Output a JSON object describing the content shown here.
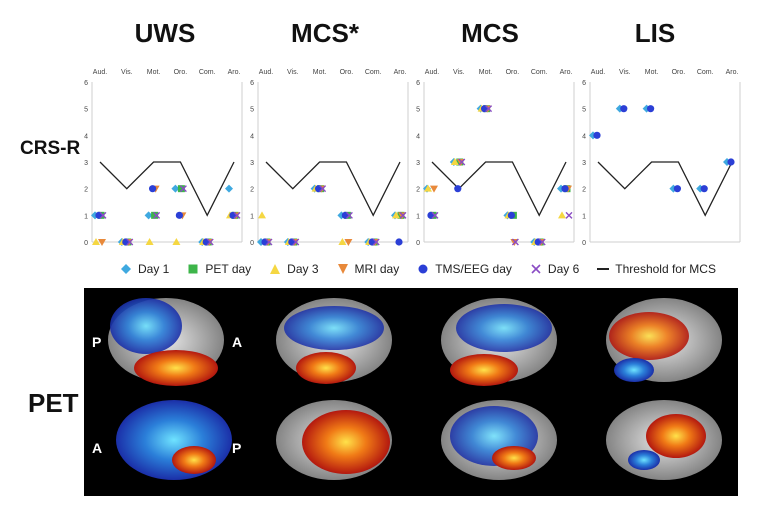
{
  "chart_data": {
    "type": "scatter",
    "ylim": [
      0,
      6
    ],
    "yticks": [
      "0",
      "1",
      "2",
      "3",
      "4",
      "5",
      "6"
    ],
    "categories": [
      "Aud.",
      "Vis.",
      "Mot.",
      "Oro.",
      "Com.",
      "Aro."
    ],
    "ylabel": "CRS-R",
    "legend": [
      {
        "name": "Day 1",
        "marker": "diamond",
        "color": "#3fa9e0"
      },
      {
        "name": "PET day",
        "marker": "square",
        "color": "#3db54a"
      },
      {
        "name": "Day 3",
        "marker": "triangle-up",
        "color": "#f5d742"
      },
      {
        "name": "MRI day",
        "marker": "triangle-down",
        "color": "#e8893a"
      },
      {
        "name": "TMS/EEG day",
        "marker": "circle",
        "color": "#2b3fd6"
      },
      {
        "name": "Day 6",
        "marker": "x",
        "color": "#8a4cc4"
      },
      {
        "name": "Threshold for MCS",
        "marker": "line",
        "color": "#222222"
      }
    ],
    "panels": [
      {
        "title": "UWS",
        "threshold": [
          3,
          2,
          3,
          3,
          1,
          3
        ],
        "series": {
          "Day 1": [
            1,
            0,
            1,
            2,
            0,
            2
          ],
          "PET day": [
            1,
            0,
            1,
            2,
            0,
            1
          ],
          "Day 3": [
            0,
            0,
            0,
            0,
            0,
            1
          ],
          "MRI day": [
            0,
            0,
            2,
            1,
            0,
            1
          ],
          "TMS/EEG day": [
            1,
            0,
            2,
            1,
            0,
            1
          ],
          "Day 6": [
            1,
            0,
            1,
            2,
            0,
            1
          ]
        }
      },
      {
        "title": "MCS*",
        "threshold": [
          3,
          2,
          3,
          3,
          1,
          3
        ],
        "series": {
          "Day 1": [
            0,
            0,
            2,
            1,
            0,
            1
          ],
          "PET day": [
            0,
            0,
            2,
            1,
            0,
            1
          ],
          "Day 3": [
            1,
            0,
            2,
            0,
            0,
            1
          ],
          "MRI day": [
            0,
            0,
            2,
            0,
            0,
            1
          ],
          "TMS/EEG day": [
            0,
            0,
            2,
            1,
            0,
            0
          ],
          "Day 6": [
            0,
            0,
            2,
            1,
            0,
            1
          ]
        }
      },
      {
        "title": "MCS",
        "threshold": [
          3,
          2,
          3,
          3,
          1,
          3
        ],
        "series": {
          "Day 1": [
            2,
            3,
            5,
            1,
            0,
            2
          ],
          "PET day": [
            1,
            3,
            5,
            1,
            0,
            2
          ],
          "Day 3": [
            2,
            3,
            5,
            1,
            0,
            1
          ],
          "MRI day": [
            2,
            3,
            5,
            0,
            0,
            2
          ],
          "TMS/EEG day": [
            1,
            2,
            5,
            1,
            0,
            2
          ],
          "Day 6": [
            1,
            3,
            5,
            0,
            0,
            1
          ]
        }
      },
      {
        "title": "LIS",
        "threshold": [
          3,
          2,
          3,
          3,
          1,
          3
        ],
        "series": {
          "Day 1": [
            4,
            5,
            5,
            2,
            2,
            3
          ],
          "TMS/EEG day": [
            4,
            5,
            5,
            2,
            2,
            3
          ]
        }
      }
    ]
  },
  "pet": {
    "row_label": "PET",
    "top_labels": [
      "P",
      "A"
    ],
    "bottom_labels": [
      "A",
      "P"
    ]
  }
}
